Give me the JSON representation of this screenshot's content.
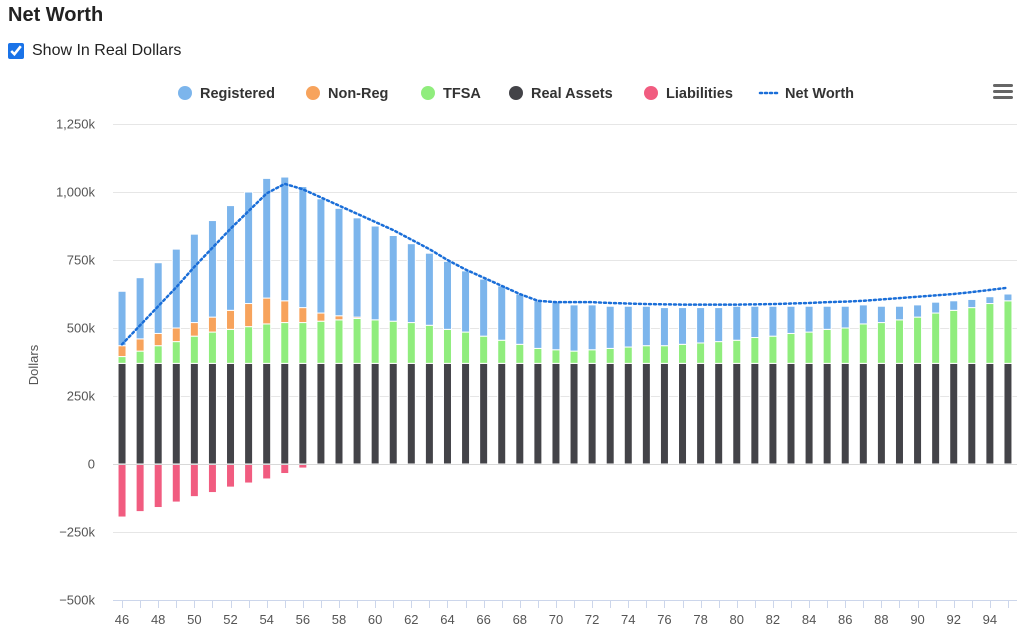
{
  "page": {
    "title": "Net Worth",
    "checkbox_label": "Show In Real Dollars",
    "checkbox_checked": true
  },
  "chart_data": {
    "type": "bar",
    "stacked": true,
    "title": "Net Worth",
    "xlabel": "",
    "ylabel": "Dollars",
    "ylim": [
      -500000,
      1250000
    ],
    "yticks": [
      -500000,
      -250000,
      0,
      250000,
      500000,
      750000,
      1000000,
      1250000
    ],
    "ytick_labels": [
      "−500k",
      "−250k",
      "0",
      "250k",
      "500k",
      "750k",
      "1,000k",
      "1,250k"
    ],
    "xtick_labels": [
      "46",
      "48",
      "50",
      "52",
      "54",
      "56",
      "58",
      "60",
      "62",
      "64",
      "66",
      "68",
      "70",
      "72",
      "74",
      "76",
      "78",
      "80",
      "82",
      "84",
      "86",
      "88",
      "90",
      "92",
      "94"
    ],
    "categories": [
      46,
      47,
      48,
      49,
      50,
      51,
      52,
      53,
      54,
      55,
      56,
      57,
      58,
      59,
      60,
      61,
      62,
      63,
      64,
      65,
      66,
      67,
      68,
      69,
      70,
      71,
      72,
      73,
      74,
      75,
      76,
      77,
      78,
      79,
      80,
      81,
      82,
      83,
      84,
      85,
      86,
      87,
      88,
      89,
      90,
      91,
      92,
      93,
      94,
      95
    ],
    "legend_position": "top-center",
    "series": [
      {
        "name": "Real Assets",
        "color": "#434348",
        "values": [
          370000,
          370000,
          370000,
          370000,
          370000,
          370000,
          370000,
          370000,
          370000,
          370000,
          370000,
          370000,
          370000,
          370000,
          370000,
          370000,
          370000,
          370000,
          370000,
          370000,
          370000,
          370000,
          370000,
          370000,
          370000,
          370000,
          370000,
          370000,
          370000,
          370000,
          370000,
          370000,
          370000,
          370000,
          370000,
          370000,
          370000,
          370000,
          370000,
          370000,
          370000,
          370000,
          370000,
          370000,
          370000,
          370000,
          370000,
          370000,
          370000,
          370000
        ]
      },
      {
        "name": "TFSA",
        "color": "#90ed7d",
        "values": [
          25000,
          45000,
          65000,
          80000,
          100000,
          115000,
          125000,
          135000,
          145000,
          150000,
          150000,
          155000,
          160000,
          165000,
          160000,
          155000,
          150000,
          140000,
          125000,
          115000,
          100000,
          85000,
          70000,
          55000,
          50000,
          45000,
          50000,
          55000,
          60000,
          65000,
          65000,
          70000,
          75000,
          80000,
          85000,
          95000,
          100000,
          110000,
          115000,
          125000,
          130000,
          145000,
          150000,
          160000,
          170000,
          185000,
          195000,
          205000,
          220000,
          230000
        ]
      },
      {
        "name": "Non-Reg",
        "color": "#f7a35c",
        "values": [
          40000,
          45000,
          45000,
          50000,
          50000,
          55000,
          70000,
          85000,
          95000,
          80000,
          55000,
          30000,
          15000,
          5000,
          0,
          0,
          0,
          0,
          0,
          0,
          0,
          0,
          0,
          0,
          0,
          0,
          0,
          0,
          0,
          0,
          0,
          0,
          0,
          0,
          0,
          0,
          0,
          0,
          0,
          0,
          0,
          0,
          0,
          0,
          0,
          0,
          0,
          0,
          0,
          0
        ]
      },
      {
        "name": "Registered",
        "color": "#7cb5ec",
        "values": [
          200000,
          225000,
          260000,
          290000,
          325000,
          355000,
          385000,
          410000,
          440000,
          455000,
          445000,
          420000,
          395000,
          365000,
          345000,
          315000,
          290000,
          265000,
          250000,
          225000,
          210000,
          200000,
          185000,
          175000,
          175000,
          170000,
          165000,
          155000,
          150000,
          145000,
          140000,
          135000,
          130000,
          125000,
          125000,
          115000,
          110000,
          100000,
          95000,
          85000,
          80000,
          70000,
          60000,
          50000,
          45000,
          40000,
          35000,
          30000,
          25000,
          25000
        ]
      },
      {
        "name": "Liabilities",
        "color": "#f15c80",
        "values": [
          -195000,
          -175000,
          -160000,
          -140000,
          -120000,
          -105000,
          -85000,
          -70000,
          -55000,
          -35000,
          -15000,
          0,
          0,
          0,
          0,
          0,
          0,
          0,
          0,
          0,
          0,
          0,
          0,
          0,
          0,
          0,
          0,
          0,
          0,
          0,
          0,
          0,
          0,
          0,
          0,
          0,
          0,
          0,
          0,
          0,
          0,
          0,
          0,
          0,
          0,
          0,
          0,
          0,
          0,
          0
        ]
      }
    ],
    "line_series": {
      "name": "Net Worth",
      "color": "#1a6ed8",
      "style": "dotted",
      "values": [
        440000,
        510000,
        580000,
        650000,
        725000,
        795000,
        865000,
        930000,
        995000,
        1030000,
        1010000,
        980000,
        950000,
        920000,
        890000,
        860000,
        825000,
        790000,
        750000,
        715000,
        685000,
        655000,
        625000,
        600000,
        595000,
        595000,
        595000,
        592000,
        590000,
        588000,
        587000,
        586000,
        586000,
        586000,
        586000,
        587000,
        588000,
        590000,
        592000,
        595000,
        597000,
        600000,
        605000,
        610000,
        615000,
        620000,
        625000,
        632000,
        640000,
        648000
      ]
    },
    "legend": [
      {
        "name": "Registered",
        "color": "#7cb5ec",
        "symbol": "circle"
      },
      {
        "name": "Non-Reg",
        "color": "#f7a35c",
        "symbol": "circle"
      },
      {
        "name": "TFSA",
        "color": "#90ed7d",
        "symbol": "circle"
      },
      {
        "name": "Real Assets",
        "color": "#434348",
        "symbol": "circle"
      },
      {
        "name": "Liabilities",
        "color": "#f15c80",
        "symbol": "circle"
      },
      {
        "name": "Net Worth",
        "color": "#1a6ed8",
        "symbol": "dotted-line"
      }
    ],
    "menu_icon": "hamburger-menu-icon"
  }
}
